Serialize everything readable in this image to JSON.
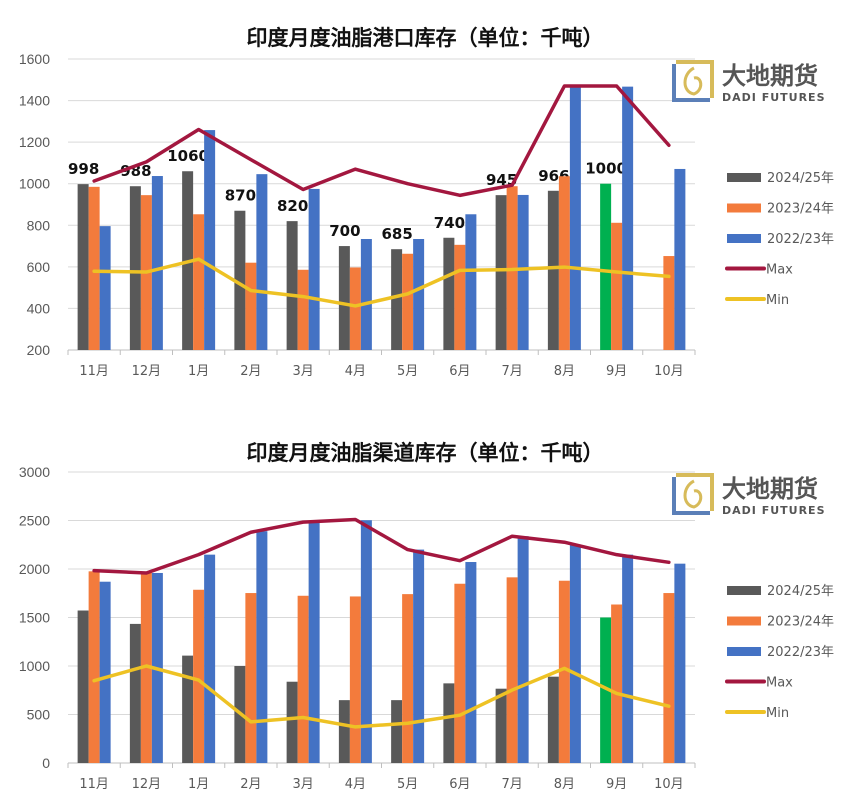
{
  "logo": {
    "cn": "大地期货",
    "en": "DADI FUTURES"
  },
  "colors": {
    "2024/25年": "#595959",
    "2024/25年_current": "#00B050",
    "2023/24年": "#F37B3C",
    "2022/23年": "#4472C4",
    "Max": "#A3173F",
    "Min": "#EEC224"
  },
  "chart_data": [
    {
      "type": "bar",
      "title": "印度月度油脂港口库存（单位：千吨）",
      "categories": [
        "11月",
        "12月",
        "1月",
        "2月",
        "3月",
        "4月",
        "5月",
        "6月",
        "7月",
        "8月",
        "9月",
        "10月"
      ],
      "ylim": [
        200,
        1600
      ],
      "yticks": [
        200,
        400,
        600,
        800,
        1000,
        1200,
        1400,
        1600
      ],
      "grid": true,
      "legend": "right",
      "series": [
        {
          "name": "2024/25年",
          "kind": "bar",
          "values": [
            998,
            988,
            1060,
            870,
            820,
            700,
            685,
            740,
            945,
            966,
            1000,
            null
          ],
          "data_labels": [
            "998",
            "988",
            "1060",
            "870",
            "820",
            "700",
            "685",
            "740",
            "945",
            "966",
            "1000",
            ""
          ],
          "highlight_index": 10
        },
        {
          "name": "2023/24年",
          "kind": "bar",
          "values": [
            985,
            945,
            853,
            620,
            586,
            597,
            663,
            706,
            988,
            1036,
            812,
            652
          ]
        },
        {
          "name": "2022/23年",
          "kind": "bar",
          "values": [
            796,
            1037,
            1258,
            1046,
            975,
            734,
            734,
            853,
            946,
            1467,
            1467,
            1071
          ]
        },
        {
          "name": "Max",
          "kind": "line",
          "values": [
            1013,
            1105,
            1261,
            1116,
            972,
            1070,
            1000,
            944,
            993,
            1470,
            1470,
            1185
          ]
        },
        {
          "name": "Min",
          "kind": "line",
          "values": [
            579,
            575,
            637,
            486,
            457,
            412,
            470,
            583,
            587,
            599,
            575,
            554
          ]
        }
      ]
    },
    {
      "type": "bar",
      "title": "印度月度油脂渠道库存（单位：千吨）",
      "categories": [
        "11月",
        "12月",
        "1月",
        "2月",
        "3月",
        "4月",
        "5月",
        "6月",
        "7月",
        "8月",
        "9月",
        "10月"
      ],
      "ylim": [
        0,
        3000
      ],
      "yticks": [
        0,
        500,
        1000,
        1500,
        2000,
        2500,
        3000
      ],
      "grid": true,
      "legend": "right",
      "series": [
        {
          "name": "2024/25年",
          "kind": "bar",
          "values": [
            1572,
            1434,
            1107,
            1000,
            838,
            648,
            648,
            821,
            766,
            890,
            1500,
            null
          ],
          "highlight_index": 10
        },
        {
          "name": "2023/24年",
          "kind": "bar",
          "values": [
            1976,
            1959,
            1786,
            1752,
            1724,
            1717,
            1741,
            1848,
            1914,
            1879,
            1634,
            1752
          ]
        },
        {
          "name": "2022/23年",
          "kind": "bar",
          "values": [
            1869,
            1959,
            2148,
            2390,
            2493,
            2503,
            2200,
            2072,
            2338,
            2252,
            2148,
            2055
          ]
        },
        {
          "name": "Max",
          "kind": "line",
          "values": [
            1983,
            1959,
            2148,
            2379,
            2483,
            2510,
            2200,
            2086,
            2338,
            2276,
            2148,
            2069
          ]
        },
        {
          "name": "Min",
          "kind": "line",
          "values": [
            848,
            1000,
            855,
            424,
            469,
            372,
            410,
            493,
            752,
            976,
            717,
            586
          ]
        }
      ]
    }
  ]
}
